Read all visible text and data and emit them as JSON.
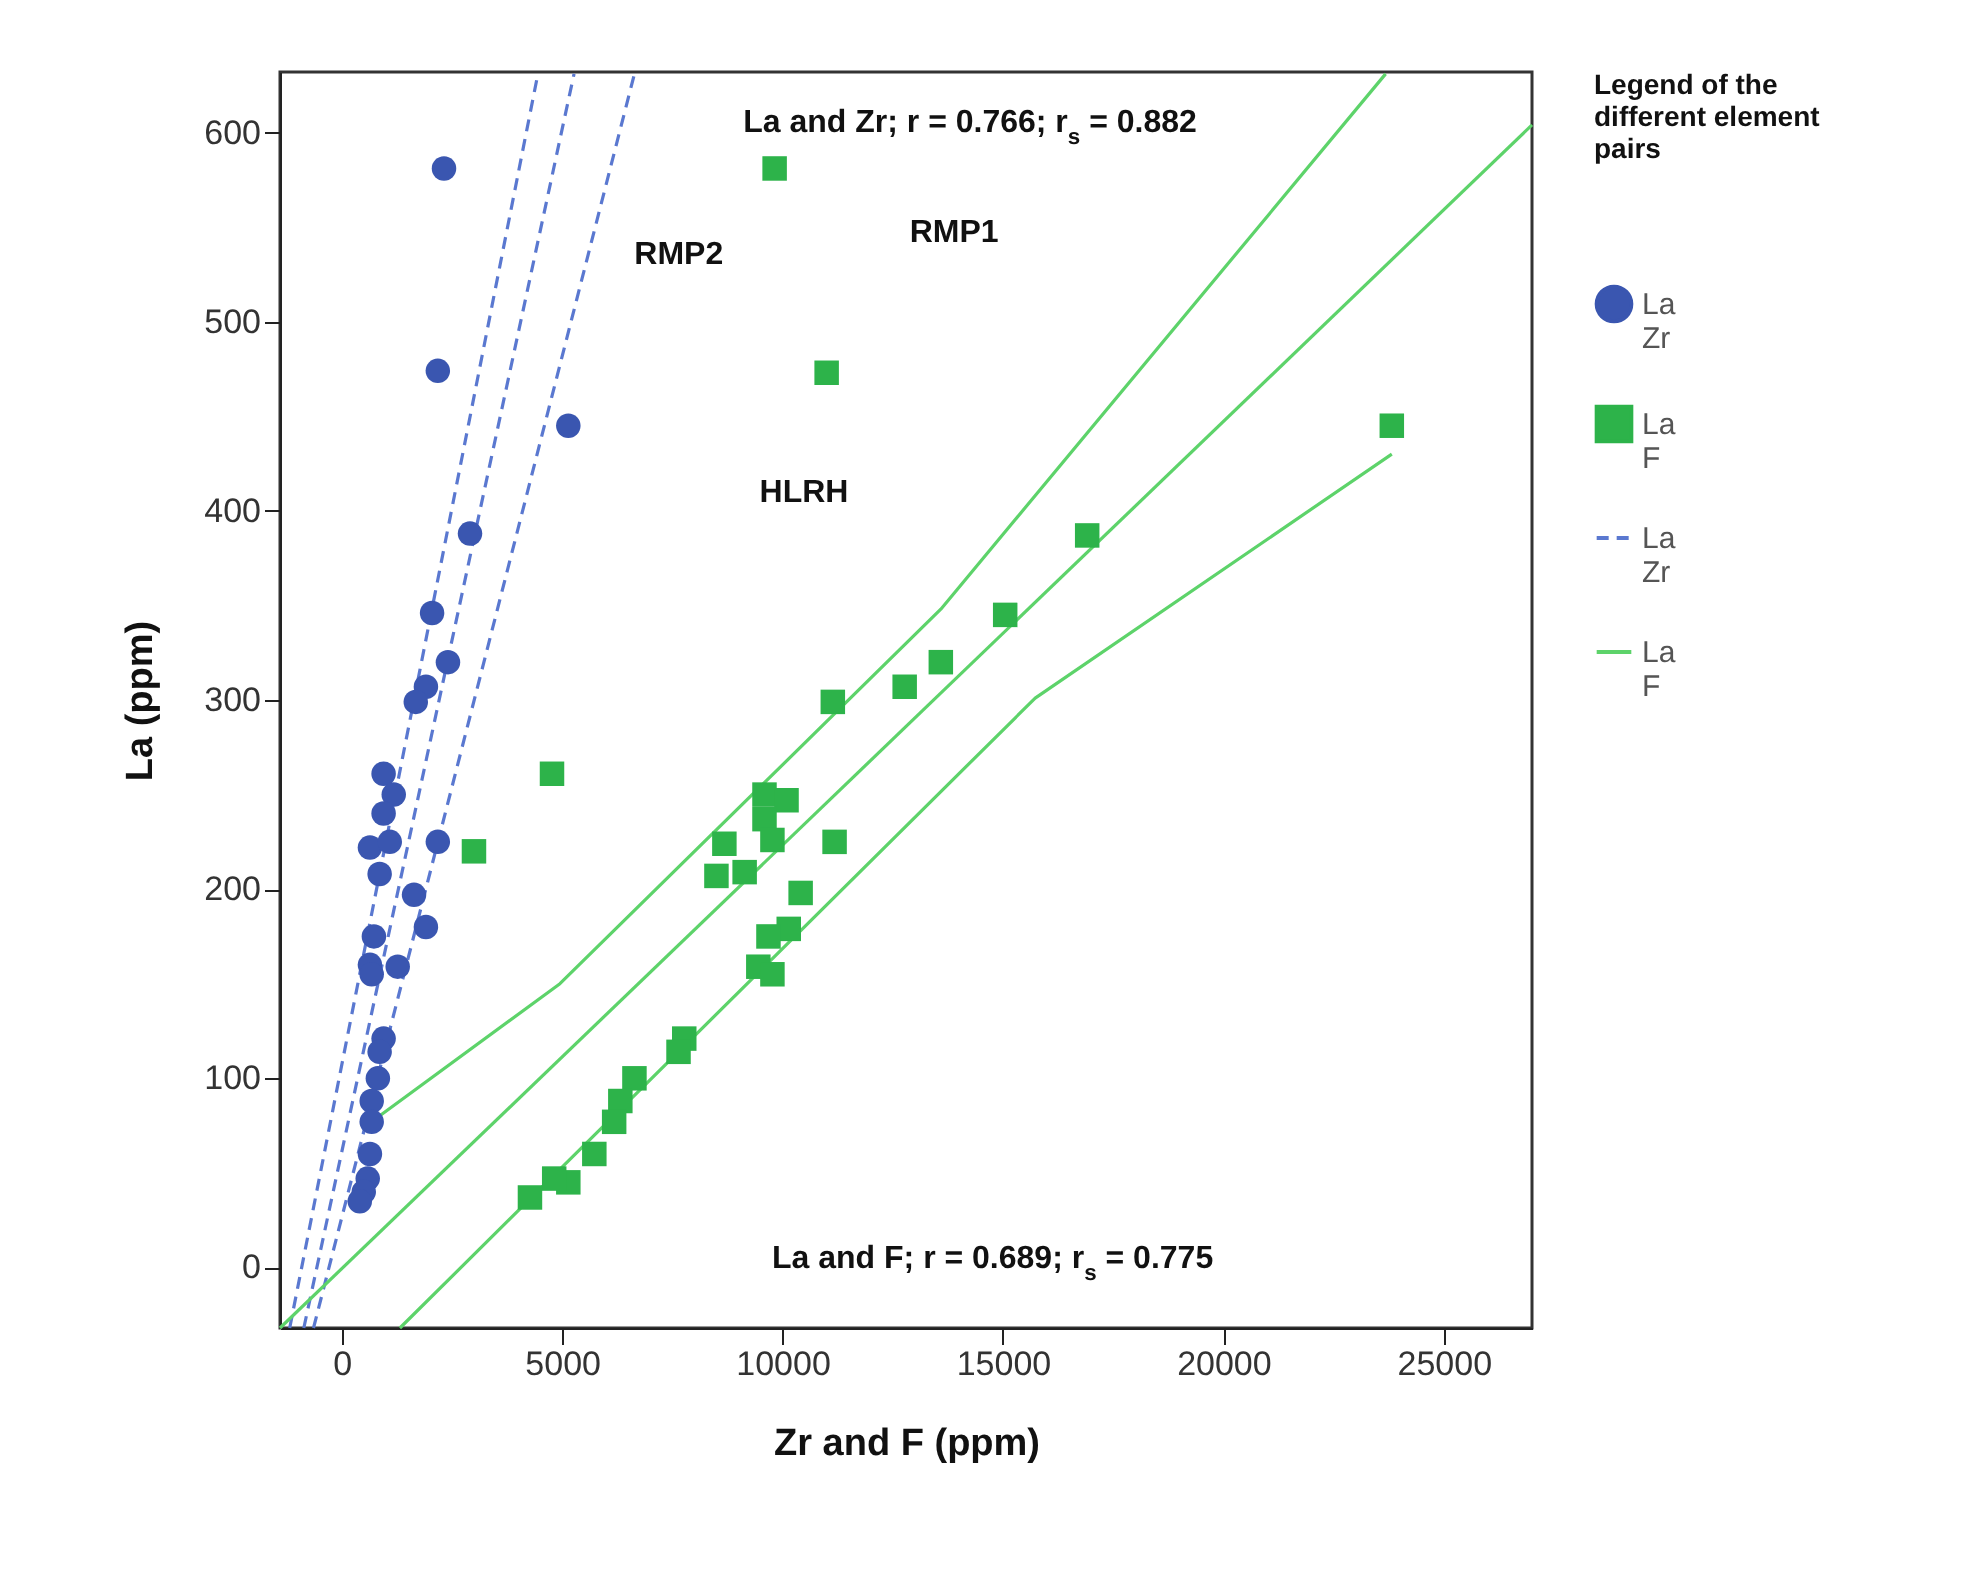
{
  "chart_data": {
    "type": "scatter",
    "xlabel": "Zr and F (ppm)",
    "ylabel": "La (ppm)",
    "legend_title": "Legend of the different element pairs",
    "legend": "right",
    "xlim": [
      -1400,
      27000
    ],
    "xticks": [
      0,
      5000,
      10000,
      15000,
      20000,
      25000
    ],
    "ylim": [
      -32,
      632
    ],
    "yticks": [
      0,
      100,
      200,
      300,
      400,
      500,
      600
    ],
    "grid": false,
    "series": [
      {
        "name": "La Zr",
        "marker": "circle",
        "color": "#3a56b0",
        "x": [
          2320,
          2180,
          5140,
          2910,
          2050,
          2410,
          1910,
          1680,
          950,
          1180,
          950,
          640,
          1090,
          2180,
          860,
          1640,
          1910,
          730,
          640,
          1270,
          680,
          950,
          860,
          820,
          680,
          680,
          640,
          590,
          500,
          410
        ],
        "values": [
          581,
          474,
          445,
          388,
          346,
          320,
          307,
          299,
          261,
          250,
          240,
          222,
          225,
          225,
          208,
          197,
          180,
          175,
          160,
          159,
          155,
          121,
          114,
          100,
          88,
          77,
          60,
          47,
          40,
          35
        ]
      },
      {
        "name": "La F",
        "marker": "square",
        "color": "#2db34a",
        "x": [
          9820,
          11000,
          23820,
          16910,
          15050,
          13590,
          12770,
          11140,
          9590,
          10090,
          9590,
          9770,
          8680,
          11180,
          9140,
          8500,
          10410,
          10140,
          9680,
          9450,
          9770,
          7770,
          3000,
          4770,
          7640,
          6640,
          6320,
          6180,
          5730,
          5140,
          4820,
          4270
        ],
        "values": [
          581,
          473,
          445,
          387,
          345,
          320,
          307,
          299,
          250,
          247,
          237,
          226,
          224,
          225,
          209,
          207,
          198,
          179,
          175,
          159,
          155,
          121,
          220,
          261,
          114,
          100,
          88,
          77,
          60,
          45,
          47,
          37
        ]
      },
      {
        "name": "La Zr",
        "type": "line",
        "line_style": "dashed",
        "marker": "none",
        "color": "#5a78d0",
        "x": [
          -860,
          5270
        ],
        "values": [
          -32,
          631
        ]
      },
      {
        "type": "line",
        "line_style": "dashed",
        "marker": "none",
        "color": "#5a78d0",
        "x": [
          -1180,
          4450
        ],
        "values": [
          -32,
          631
        ]
      },
      {
        "type": "line",
        "line_style": "dashed",
        "marker": "none",
        "color": "#5a78d0",
        "x": [
          -640,
          6640
        ],
        "values": [
          -32,
          631
        ]
      },
      {
        "name": "La F",
        "type": "line",
        "line_style": "solid",
        "marker": "none",
        "color": "#5dd36a",
        "x": [
          -1400,
          27000
        ],
        "values": [
          -32,
          604
        ]
      },
      {
        "type": "line",
        "line_style": "solid",
        "marker": "none",
        "color": "#5dd36a",
        "x": [
          500,
          4950,
          13590,
          23680
        ],
        "values": [
          74,
          150,
          348,
          631
        ]
      },
      {
        "type": "line",
        "line_style": "solid",
        "marker": "none",
        "color": "#5dd36a",
        "x": [
          1320,
          15730,
          23820
        ],
        "values": [
          -32,
          301,
          430
        ]
      }
    ],
    "annotations": [
      "La and Zr; r = 0.766; r$_{s}$ = 0.882",
      "RMP1",
      "RMP2",
      "HLRH",
      "La and F; r = 0.689; r$_{s}$ = 0.775"
    ]
  }
}
